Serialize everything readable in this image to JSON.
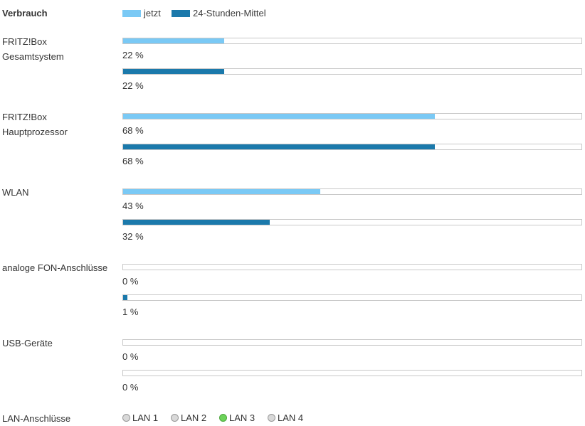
{
  "header": {
    "title": "Verbrauch",
    "legend_now": "jetzt",
    "legend_avg": "24-Stunden-Mittel"
  },
  "colors": {
    "now": "#7ac9f5",
    "avg": "#1b79ab",
    "lan_active": "#6dd35a",
    "lan_inactive": "#d9d9d9"
  },
  "rows": [
    {
      "label_lines": [
        "FRITZ!Box",
        "Gesamtsystem"
      ],
      "now_pct": 22,
      "now_text": "22 %",
      "avg_pct": 22,
      "avg_text": "22 %"
    },
    {
      "label_lines": [
        "FRITZ!Box",
        "Hauptprozessor"
      ],
      "now_pct": 68,
      "now_text": "68 %",
      "avg_pct": 68,
      "avg_text": "68 %"
    },
    {
      "label_lines": [
        "WLAN"
      ],
      "now_pct": 43,
      "now_text": "43 %",
      "avg_pct": 32,
      "avg_text": "32 %"
    },
    {
      "label_lines": [
        "analoge FON-Anschlüsse"
      ],
      "now_pct": 0,
      "now_text": "0 %",
      "avg_pct": 1,
      "avg_text": "1 %"
    },
    {
      "label_lines": [
        "USB-Geräte"
      ],
      "now_pct": 0,
      "now_text": "0 %",
      "avg_pct": 0,
      "avg_text": "0 %"
    }
  ],
  "lan": {
    "label": "LAN-Anschlüsse",
    "ports": [
      {
        "name": "LAN 1",
        "active": false
      },
      {
        "name": "LAN 2",
        "active": false
      },
      {
        "name": "LAN 3",
        "active": true
      },
      {
        "name": "LAN 4",
        "active": false
      }
    ]
  }
}
